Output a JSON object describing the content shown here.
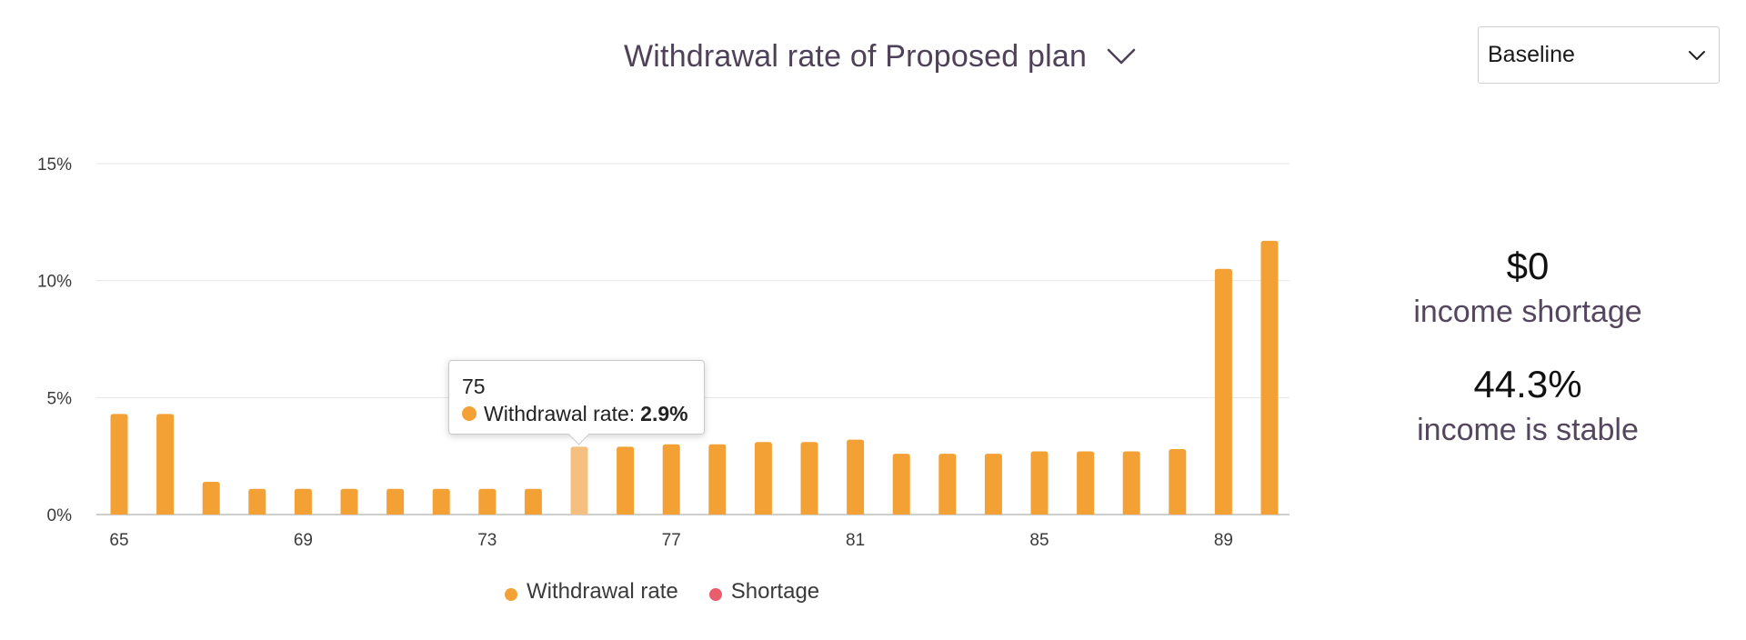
{
  "header": {
    "title": "Withdrawal rate of Proposed plan",
    "scenario_select": {
      "value": "Baseline"
    }
  },
  "tooltip": {
    "age": "75",
    "series_label": "Withdrawal rate:",
    "value": "2.9%"
  },
  "legend": [
    {
      "label": "Withdrawal rate",
      "color": "#f3a035"
    },
    {
      "label": "Shortage",
      "color": "#e85e6c"
    }
  ],
  "stats": {
    "shortage_value": "$0",
    "shortage_label": "income shortage",
    "stable_value": "44.3%",
    "stable_label": "income is stable"
  },
  "colors": {
    "bar": "#f3a035",
    "bar_highlight": "#f5c07f",
    "title": "#4f4258",
    "stat_label": "#55465f"
  },
  "chart_data": {
    "type": "bar",
    "title": "Withdrawal rate of Proposed plan",
    "xlabel": "",
    "ylabel": "",
    "ylim": [
      0,
      15
    ],
    "y_ticks": [
      "0%",
      "5%",
      "10%",
      "15%"
    ],
    "x_tick_labels": [
      "65",
      "69",
      "73",
      "77",
      "81",
      "85",
      "89"
    ],
    "categories": [
      65,
      66,
      67,
      68,
      69,
      70,
      71,
      72,
      73,
      74,
      75,
      76,
      77,
      78,
      79,
      80,
      81,
      82,
      83,
      84,
      85,
      86,
      87,
      88,
      89,
      90
    ],
    "series": [
      {
        "name": "Withdrawal rate",
        "color": "#f3a035",
        "values": [
          4.3,
          4.3,
          1.4,
          1.1,
          1.1,
          1.1,
          1.1,
          1.1,
          1.1,
          1.1,
          2.9,
          2.9,
          3.0,
          3.0,
          3.1,
          3.1,
          3.2,
          2.6,
          2.6,
          2.6,
          2.7,
          2.7,
          2.7,
          2.8,
          10.5,
          11.7
        ]
      },
      {
        "name": "Shortage",
        "color": "#e85e6c",
        "values": [
          0,
          0,
          0,
          0,
          0,
          0,
          0,
          0,
          0,
          0,
          0,
          0,
          0,
          0,
          0,
          0,
          0,
          0,
          0,
          0,
          0,
          0,
          0,
          0,
          0,
          0
        ]
      }
    ],
    "highlighted_category": 75,
    "grid": true,
    "legend_position": "bottom"
  }
}
